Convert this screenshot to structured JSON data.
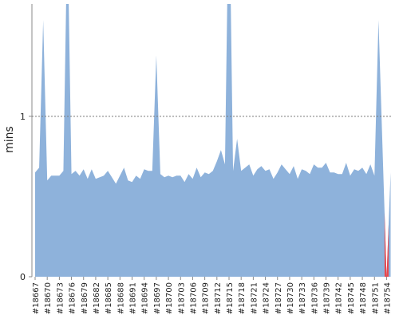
{
  "chart_data": {
    "type": "area",
    "y_label": "mins",
    "categories": [
      "#18667",
      null,
      null,
      "#18670",
      null,
      null,
      "#18673",
      null,
      null,
      "#18676",
      null,
      null,
      "#18679",
      null,
      null,
      "#18682",
      null,
      null,
      "#18685",
      null,
      null,
      "#18688",
      null,
      null,
      "#18691",
      null,
      null,
      "#18694",
      null,
      null,
      "#18697",
      null,
      null,
      "#18700",
      null,
      null,
      "#18703",
      null,
      null,
      "#18706",
      null,
      null,
      "#18709",
      null,
      null,
      "#18712",
      null,
      null,
      "#18715",
      null,
      null,
      "#18718",
      null,
      null,
      "#18721",
      null,
      null,
      "#18724",
      null,
      null,
      "#18727",
      null,
      null,
      "#18730",
      null,
      null,
      "#18733",
      null,
      null,
      "#18736",
      null,
      null,
      "#18739",
      null,
      null,
      "#18742",
      null,
      null,
      "#18745",
      null,
      null,
      "#18748",
      null,
      null,
      "#18751",
      null,
      null,
      "#18754",
      null
    ],
    "values": [
      0.65,
      0.68,
      1.6,
      0.6,
      0.63,
      0.63,
      0.63,
      0.66,
      2.2,
      0.64,
      0.66,
      0.63,
      0.67,
      0.61,
      0.67,
      0.61,
      0.62,
      0.63,
      0.66,
      0.62,
      0.58,
      0.63,
      0.68,
      0.6,
      0.59,
      0.63,
      0.61,
      0.67,
      0.66,
      0.66,
      1.38,
      0.64,
      0.62,
      0.63,
      0.62,
      0.63,
      0.63,
      0.59,
      0.64,
      0.61,
      0.68,
      0.62,
      0.65,
      0.64,
      0.66,
      0.72,
      0.79,
      0.7,
      2.5,
      0.66,
      0.86,
      0.66,
      0.68,
      0.7,
      0.63,
      0.67,
      0.69,
      0.66,
      0.67,
      0.61,
      0.65,
      0.7,
      0.67,
      0.64,
      0.69,
      0.61,
      0.67,
      0.66,
      0.64,
      0.7,
      0.68,
      0.68,
      0.71,
      0.65,
      0.65,
      0.64,
      0.64,
      0.71,
      0.63,
      0.67,
      0.66,
      0.68,
      0.64,
      0.7,
      0.63,
      1.6,
      0.8,
      0,
      0.65
    ],
    "color": "#8eb2db",
    "failed": {
      "index": 87,
      "color": "#e8484d"
    },
    "ylim": [
      0,
      1.7
    ],
    "yticks": [
      0,
      1
    ],
    "grid": true
  }
}
